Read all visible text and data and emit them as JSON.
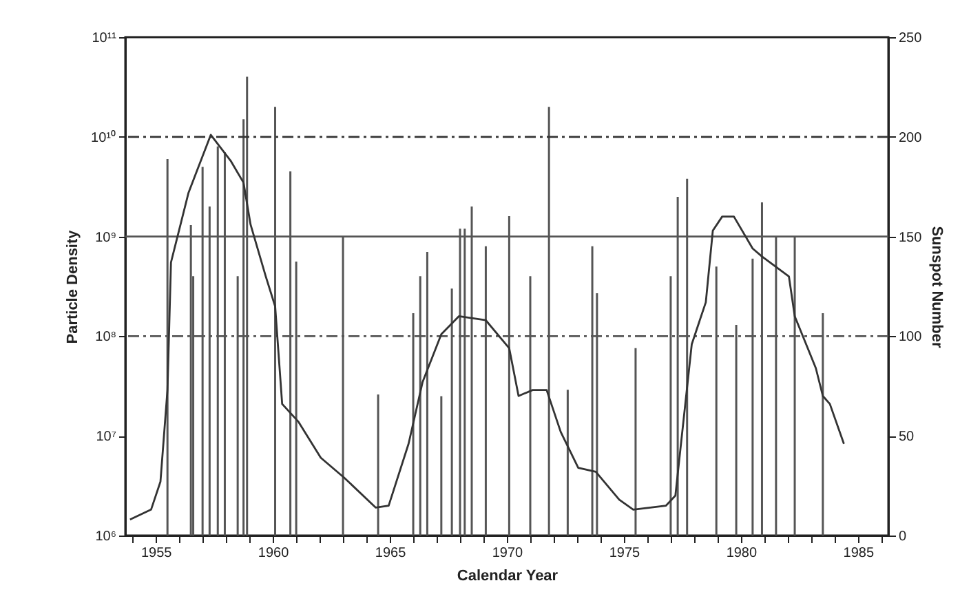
{
  "chart_data": {
    "type": "bar",
    "xlabel": "Calendar Year",
    "ylabel": "Particle Density",
    "y2label": "Sunspot Number",
    "log": "y",
    "xlim": [
      1953.7,
      1986.3
    ],
    "xticks": [
      {
        "value": 1954,
        "label": null
      },
      1955,
      {
        "value": 1956,
        "label": null
      },
      {
        "value": 1957,
        "label": null
      },
      {
        "value": 1958,
        "label": null
      },
      {
        "value": 1959,
        "label": null
      },
      1960,
      {
        "value": 1961,
        "label": null
      },
      {
        "value": 1962,
        "label": null
      },
      {
        "value": 1963,
        "label": null
      },
      {
        "value": 1964,
        "label": null
      },
      1965,
      {
        "value": 1966,
        "label": null
      },
      {
        "value": 1967,
        "label": null
      },
      {
        "value": 1968,
        "label": null
      },
      {
        "value": 1969,
        "label": null
      },
      1970,
      {
        "value": 1971,
        "label": null
      },
      {
        "value": 1972,
        "label": null
      },
      {
        "value": 1973,
        "label": null
      },
      {
        "value": 1974,
        "label": null
      },
      1975,
      {
        "value": 1976,
        "label": null
      },
      {
        "value": 1977,
        "label": null
      },
      {
        "value": 1978,
        "label": null
      },
      {
        "value": 1979,
        "label": null
      },
      1980,
      {
        "value": 1981,
        "label": null
      },
      {
        "value": 1982,
        "label": null
      },
      {
        "value": 1983,
        "label": null
      },
      {
        "value": 1984,
        "label": null
      },
      1985,
      {
        "value": 1986,
        "label": null
      }
    ],
    "ylim": [
      1000000,
      100000000000
    ],
    "yticks": [
      {
        "value": 1000000,
        "label": "10⁶"
      },
      {
        "value": 10000000,
        "label": "10⁷"
      },
      {
        "value": 100000000,
        "label": "10⁸"
      },
      {
        "value": 1000000000,
        "label": "10⁹"
      },
      {
        "value": 10000000000,
        "label": "10¹⁰"
      },
      {
        "value": 100000000000,
        "label": "10¹¹"
      }
    ],
    "y2lim": [
      0,
      250
    ],
    "y2ticks": [
      0,
      50,
      100,
      150,
      200,
      250
    ],
    "ref_lines": [
      {
        "axis": "y",
        "value": 10000000000,
        "line_style": "dashed",
        "color": "#333333"
      },
      {
        "axis": "y",
        "value": 1000000000,
        "line_style": "solid",
        "color": "#555555"
      },
      {
        "axis": "y",
        "value": 100000000,
        "line_style": "dashed",
        "color": "#555555"
      }
    ],
    "series": [
      {
        "color": "#555555",
        "x": [
          1955.5,
          1956.5,
          1956.6,
          1957.0,
          1957.3,
          1957.65,
          1957.95,
          1958.5,
          1958.75,
          1958.9,
          1960.1,
          1960.75,
          1961.0,
          1963.0,
          1964.5,
          1966.0,
          1966.3,
          1966.6,
          1967.2,
          1967.65,
          1968.0,
          1968.2,
          1968.5,
          1969.1,
          1970.1,
          1971.0,
          1971.8,
          1972.6,
          1973.65,
          1973.85,
          1975.5,
          1977.0,
          1977.3,
          1977.7,
          1978.95,
          1979.8,
          1980.5,
          1980.9,
          1981.5,
          1982.3,
          1983.5
        ],
        "values": [
          6000000000,
          1300000000,
          400000000,
          5000000000,
          2000000000,
          8000000000,
          7000000000,
          400000000,
          15000000000,
          40000000000,
          20000000000,
          4500000000,
          560000000,
          1000000000,
          26000000,
          170000000,
          400000000,
          700000000,
          25000000,
          300000000,
          1200000000,
          1200000000,
          2000000000,
          800000000,
          1600000000,
          400000000,
          20000000000,
          29000000,
          800000000,
          270000000,
          76000000,
          400000000,
          2500000000,
          3800000000,
          500000000,
          130000000,
          600000000,
          2200000000,
          1000000000,
          1000000000,
          170000000
        ]
      },
      {
        "type": "line",
        "axis": "y2",
        "color": "#333333",
        "x": [
          1953.9,
          1954.8,
          1955.2,
          1955.5,
          1955.65,
          1956.4,
          1957.35,
          1958.2,
          1958.75,
          1959.05,
          1959.7,
          1960.1,
          1960.4,
          1961.1,
          1962.05,
          1963.05,
          1964.4,
          1964.95,
          1965.8,
          1966.4,
          1967.2,
          1967.95,
          1969.1,
          1970.1,
          1970.5,
          1971.1,
          1971.7,
          1972.3,
          1973.05,
          1973.8,
          1974.8,
          1975.4,
          1976.8,
          1977.2,
          1977.9,
          1978.5,
          1978.8,
          1979.2,
          1979.7,
          1980.5,
          1980.9,
          1982.05,
          1982.3,
          1983.2,
          1983.5,
          1983.8,
          1984.4
        ],
        "values": [
          8,
          13,
          27,
          73,
          137,
          172,
          201,
          188,
          177,
          156,
          130,
          115,
          66,
          57,
          39,
          29,
          14,
          15,
          46,
          77,
          101,
          110,
          108,
          94,
          70,
          73,
          73,
          52,
          34,
          32,
          18,
          13,
          15,
          20,
          96,
          117,
          153,
          160,
          160,
          144,
          140,
          130,
          110,
          84,
          70,
          66,
          46
        ]
      }
    ]
  }
}
